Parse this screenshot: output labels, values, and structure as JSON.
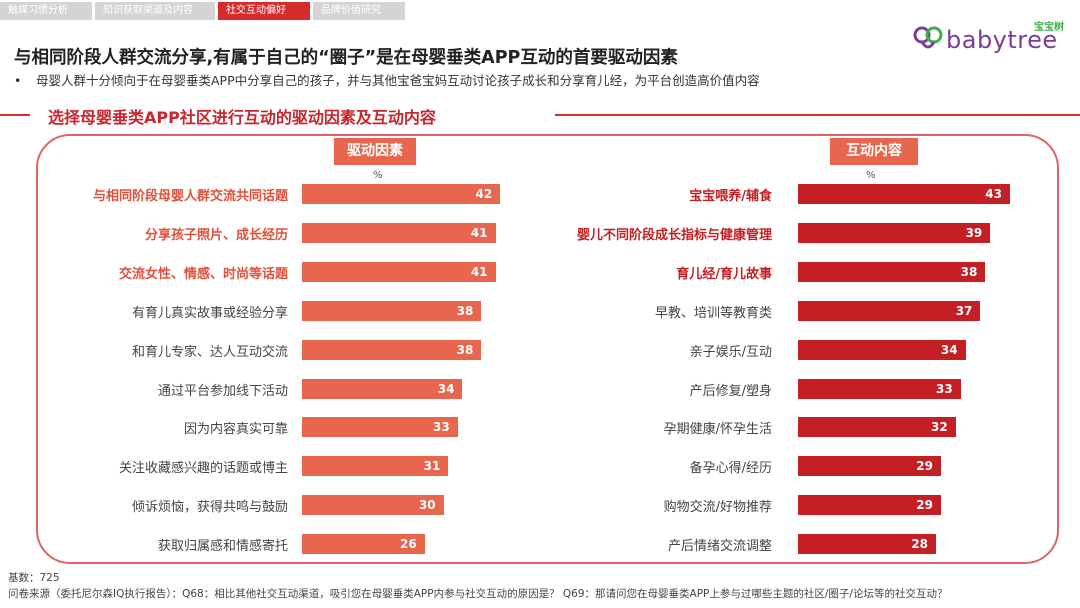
{
  "tabs": [
    "触媒习惯分析",
    "知识获取渠道及内容",
    "社交互动偏好",
    "品牌价值研究"
  ],
  "logo": {
    "text": "babytree",
    "cn": "宝宝树"
  },
  "main_title": "与相同阶段人群交流分享,有属于自己的“圈子”是在母婴垂类APP互动的首要驱动因素",
  "bullet": "•",
  "bullet_text": "母婴人群十分倾向于在母婴垂类APP中分享自己的孩子，并与其他宝爸宝妈互动讨论孩子成长和分享育儿经，为平台创造高价值内容",
  "section_title": "选择母婴垂类APP社区进行互动的驱动因素及互动内容",
  "colors": {
    "accent": "#d72c2c",
    "bar_left": "#e8654e",
    "bar_right": "#c41f25",
    "highlight_left": "#e0503a",
    "highlight_right": "#c41f25"
  },
  "chart_data": [
    {
      "type": "bar",
      "title": "驱动因素",
      "unit": "%",
      "categories": [
        "与相同阶段母婴人群交流共同话题",
        "分享孩子照片、成长经历",
        "交流女性、情感、时尚等话题",
        "有育儿真实故事或经验分享",
        "和育儿专家、达人互动交流",
        "通过平台参加线下活动",
        "因为内容真实可靠",
        "关注收藏感兴趣的话题或博主",
        "倾诉烦恼，获得共鸣与鼓励",
        "获取归属感和情感寄托"
      ],
      "values": [
        42,
        41,
        41,
        38,
        38,
        34,
        33,
        31,
        30,
        26
      ],
      "highlight_count": 3
    },
    {
      "type": "bar",
      "title": "互动内容",
      "unit": "%",
      "categories": [
        "宝宝喂养/辅食",
        "婴儿不同阶段成长指标与健康管理",
        "育儿经/育儿故事",
        "早教、培训等教育类",
        "亲子娱乐/互动",
        "产后修复/塑身",
        "孕期健康/怀孕生活",
        "备孕心得/经历",
        "购物交流/好物推荐",
        "产后情绪交流调整"
      ],
      "values": [
        43,
        39,
        38,
        37,
        34,
        33,
        32,
        29,
        29,
        28
      ],
      "highlight_count": 3
    }
  ],
  "footer": {
    "base": "基数：725",
    "source": "问卷来源（委托尼尔森IQ执行报告）：Q68：相比其他社交互动渠道，吸引您在母婴垂类APP内参与社交互动的原因是？ Q69：那请问您在母婴垂类APP上参与过哪些主题的社区/圈子/论坛等的社交互动？"
  }
}
